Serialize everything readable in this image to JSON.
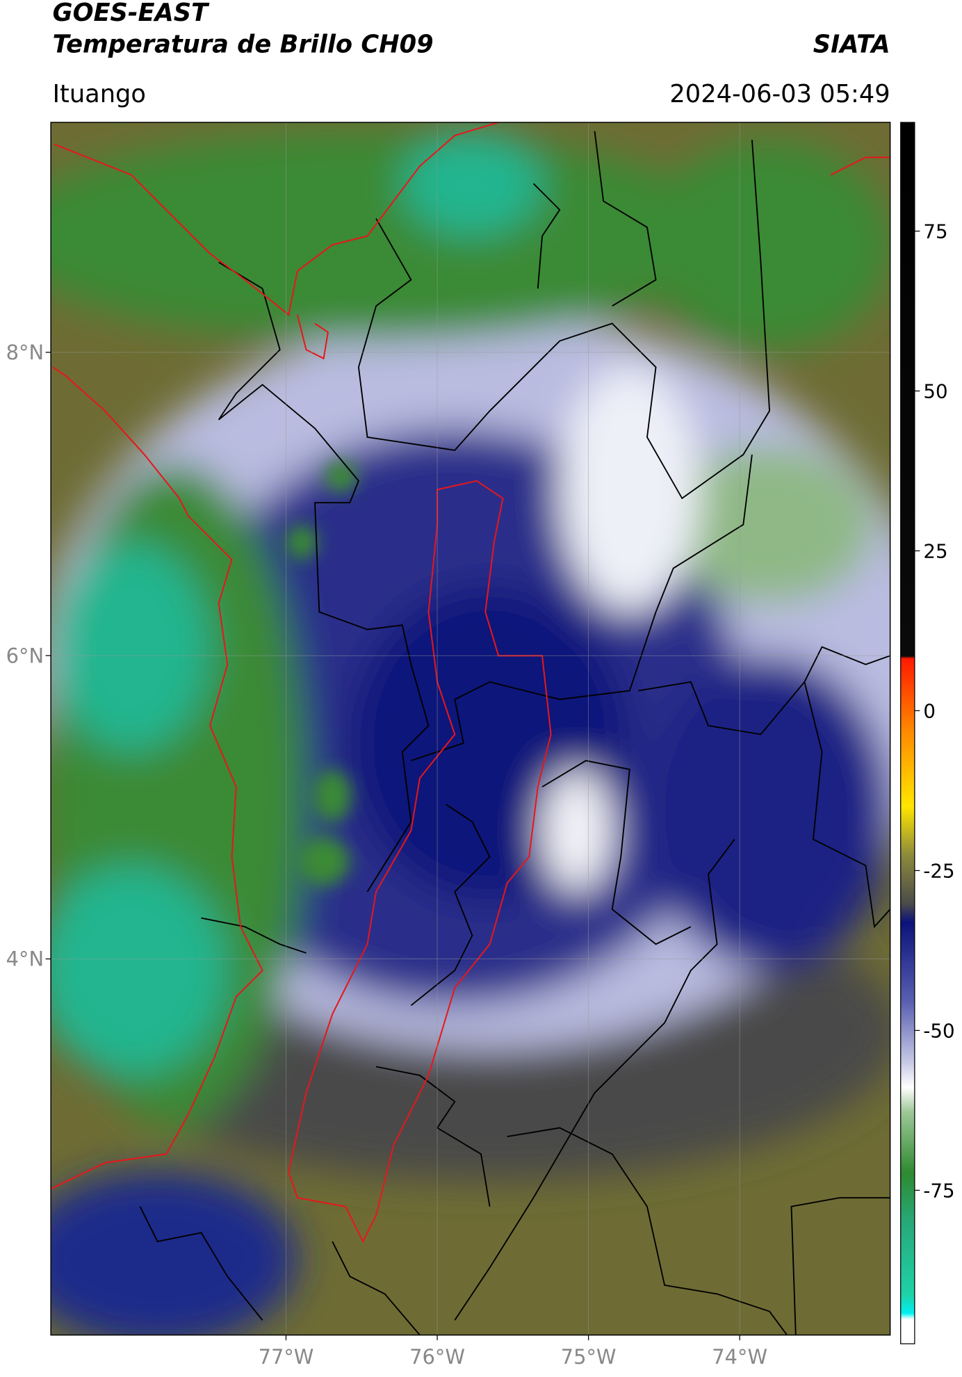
{
  "header": {
    "title": "GOES-EAST",
    "subtitle": "Temperatura de Brillo CH09",
    "source": "SIATA",
    "location": "Ituango",
    "datetime": "2024-06-03 05:49"
  },
  "map": {
    "xlim": [
      -78.555,
      -73.005
    ],
    "ylim": [
      1.52,
      9.516
    ],
    "xticks": [
      {
        "value": -77,
        "label": "77°W"
      },
      {
        "value": -76,
        "label": "76°W"
      },
      {
        "value": -75,
        "label": "75°W"
      },
      {
        "value": -74,
        "label": "74°W"
      }
    ],
    "yticks": [
      {
        "value": 4,
        "label": "4°N"
      },
      {
        "value": 6,
        "label": "6°N"
      },
      {
        "value": 8,
        "label": "8°N"
      }
    ],
    "grid": true
  },
  "colorbar": {
    "lim": [
      -99,
      92
    ],
    "ticks": [
      -75,
      -50,
      -25,
      0,
      25,
      50,
      75
    ]
  }
}
